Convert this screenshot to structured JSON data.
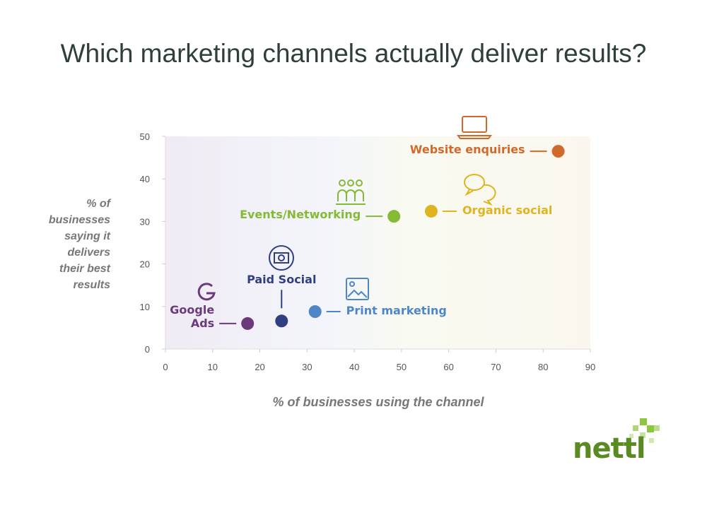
{
  "chart_data": {
    "type": "scatter",
    "title": "Which marketing channels actually deliver results?",
    "x_label": "% of businesses using the channel",
    "y_label": "% of businesses saying it delivers their best results",
    "xlim": [
      0,
      90
    ],
    "xticks": [
      0,
      10,
      20,
      30,
      40,
      50,
      60,
      70,
      80,
      90
    ],
    "ylim": [
      0,
      50
    ],
    "yticks": [
      0,
      10,
      20,
      30,
      40,
      50
    ],
    "series": [
      {
        "name": "Website enquiries",
        "color": "#d2692a",
        "x": [
          83.2
        ],
        "values": [
          46.5
        ]
      },
      {
        "name": "Organic social",
        "color": "#dfb51f",
        "x": [
          56.3
        ],
        "values": [
          32.4
        ]
      },
      {
        "name": "Events/Networking",
        "color": "#86b935",
        "x": [
          48.4
        ],
        "values": [
          31.2
        ]
      },
      {
        "name": "Print marketing",
        "color": "#4f86c6",
        "x": [
          31.7
        ],
        "values": [
          8.8
        ]
      },
      {
        "name": "Paid Social",
        "color": "#2f3f82",
        "x": [
          24.6
        ],
        "values": [
          6.6
        ]
      },
      {
        "name": "Google Ads",
        "color": "#6a3a7c",
        "x": [
          17.4
        ],
        "values": [
          6.0
        ]
      }
    ]
  },
  "logo": "nettl"
}
